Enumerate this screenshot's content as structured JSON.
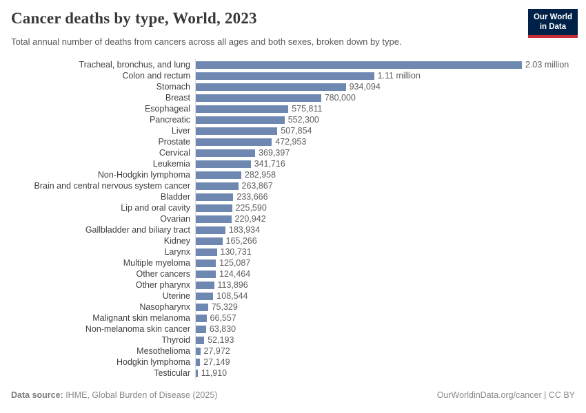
{
  "chart_data": {
    "type": "bar",
    "orientation": "horizontal",
    "title": "Cancer deaths by type, World, 2023",
    "subtitle": "Total annual number of deaths from cancers across all ages and both sexes, broken down by type.",
    "xlabel": "",
    "ylabel": "",
    "xlim": [
      0,
      2030000
    ],
    "grid": false,
    "legend": "none",
    "bar_color": "#6f88b1",
    "categories": [
      "Tracheal, bronchus, and lung",
      "Colon and rectum",
      "Stomach",
      "Breast",
      "Esophageal",
      "Pancreatic",
      "Liver",
      "Prostate",
      "Cervical",
      "Leukemia",
      "Non-Hodgkin lymphoma",
      "Brain and central nervous system cancer",
      "Bladder",
      "Lip and oral cavity",
      "Ovarian",
      "Gallbladder and biliary tract",
      "Kidney",
      "Larynx",
      "Multiple myeloma",
      "Other cancers",
      "Other pharynx",
      "Uterine",
      "Nasopharynx",
      "Malignant skin melanoma",
      "Non-melanoma skin cancer",
      "Thyroid",
      "Mesothelioma",
      "Hodgkin lymphoma",
      "Testicular"
    ],
    "values": [
      2030000,
      1110000,
      934094,
      780000,
      575811,
      552300,
      507854,
      472953,
      369397,
      341716,
      282958,
      263867,
      233666,
      225590,
      220942,
      183934,
      165266,
      130731,
      125087,
      124464,
      113896,
      108544,
      75329,
      66557,
      63830,
      52193,
      27972,
      27149,
      11910
    ],
    "value_labels": [
      "2.03 million",
      "1.11 million",
      "934,094",
      "780,000",
      "575,811",
      "552,300",
      "507,854",
      "472,953",
      "369,397",
      "341,716",
      "282,958",
      "263,867",
      "233,666",
      "225,590",
      "220,942",
      "183,934",
      "165,266",
      "130,731",
      "125,087",
      "124,464",
      "113,896",
      "108,544",
      "75,329",
      "66,557",
      "63,830",
      "52,193",
      "27,972",
      "27,149",
      "11,910"
    ]
  },
  "header": {
    "logo_line1": "Our World",
    "logo_line2": "in Data",
    "logo_bg": "#002147",
    "logo_stripe": "#c62d35"
  },
  "footer": {
    "datasource_label": "Data source:",
    "datasource_text": " IHME, Global Burden of Disease (2025)",
    "attribution": "OurWorldinData.org/cancer | CC BY"
  }
}
